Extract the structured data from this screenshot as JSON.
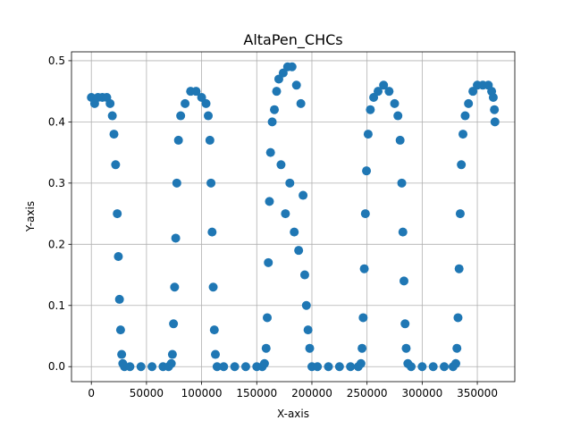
{
  "chart_data": {
    "type": "scatter",
    "title": "AltaPen_CHCs",
    "xlabel": "X-axis",
    "ylabel": "Y-axis",
    "xlim": [
      -18000,
      384000
    ],
    "ylim": [
      -0.0245,
      0.5145
    ],
    "xticks": [
      0,
      50000,
      100000,
      150000,
      200000,
      250000,
      300000,
      350000
    ],
    "xtick_labels": [
      "0",
      "50000",
      "100000",
      "150000",
      "200000",
      "250000",
      "300000",
      "350000"
    ],
    "yticks": [
      0.0,
      0.1,
      0.2,
      0.3,
      0.4,
      0.5
    ],
    "ytick_labels": [
      "0.0",
      "0.1",
      "0.2",
      "0.3",
      "0.4",
      "0.5"
    ],
    "grid": true,
    "legend": "none",
    "marker": "circle",
    "color": "#1f77b4",
    "series": [
      {
        "x": [
          0,
          3000,
          6000,
          10000,
          14000,
          17000,
          19000,
          20500,
          22000,
          23500,
          24500,
          25500,
          26500,
          27500,
          28500,
          30000,
          35000,
          45000,
          55000,
          65000,
          70000,
          72500,
          73500,
          74500,
          75500,
          76500,
          77500,
          79000,
          81000,
          85000,
          90000,
          95000,
          100000,
          104000,
          106000,
          107500,
          108500,
          109500,
          110500,
          111500,
          112500,
          114000,
          120000,
          130000,
          140000,
          150000,
          155000,
          157000,
          158500,
          159500,
          160500,
          161500,
          162500,
          164000,
          166000,
          168000,
          170000,
          172000,
          174000,
          176000,
          178000,
          180000,
          182000,
          184000,
          186000,
          188000,
          190000,
          192000,
          193500,
          195000,
          196500,
          198000,
          200000,
          205000,
          215000,
          225000,
          235000,
          242000,
          244500,
          245500,
          246500,
          247500,
          248500,
          249500,
          251000,
          253000,
          256000,
          260000,
          265000,
          270000,
          275000,
          278000,
          280000,
          281500,
          282500,
          283500,
          284500,
          285500,
          287000,
          290000,
          300000,
          310000,
          320000,
          328000,
          330500,
          331500,
          332500,
          333500,
          334500,
          335500,
          337000,
          339000,
          342000,
          346000,
          350000,
          355000,
          360000,
          363000,
          364500,
          365500,
          366000
        ],
        "y": [
          0.44,
          0.43,
          0.44,
          0.44,
          0.44,
          0.43,
          0.41,
          0.38,
          0.33,
          0.25,
          0.18,
          0.11,
          0.06,
          0.02,
          0.005,
          0.0,
          0.0,
          0.0,
          0.0,
          0.0,
          0.0,
          0.005,
          0.02,
          0.07,
          0.13,
          0.21,
          0.3,
          0.37,
          0.41,
          0.43,
          0.45,
          0.45,
          0.44,
          0.43,
          0.41,
          0.37,
          0.3,
          0.22,
          0.13,
          0.06,
          0.02,
          0.0,
          0.0,
          0.0,
          0.0,
          0.0,
          0.0,
          0.005,
          0.03,
          0.08,
          0.17,
          0.27,
          0.35,
          0.4,
          0.42,
          0.45,
          0.47,
          0.33,
          0.48,
          0.25,
          0.49,
          0.3,
          0.49,
          0.22,
          0.46,
          0.19,
          0.43,
          0.28,
          0.15,
          0.1,
          0.06,
          0.03,
          0.0,
          0.0,
          0.0,
          0.0,
          0.0,
          0.0,
          0.005,
          0.03,
          0.08,
          0.16,
          0.25,
          0.32,
          0.38,
          0.42,
          0.44,
          0.45,
          0.46,
          0.45,
          0.43,
          0.41,
          0.37,
          0.3,
          0.22,
          0.14,
          0.07,
          0.03,
          0.005,
          0.0,
          0.0,
          0.0,
          0.0,
          0.0,
          0.005,
          0.03,
          0.08,
          0.16,
          0.25,
          0.33,
          0.38,
          0.41,
          0.43,
          0.45,
          0.46,
          0.46,
          0.46,
          0.45,
          0.44,
          0.42,
          0.4
        ]
      }
    ]
  }
}
